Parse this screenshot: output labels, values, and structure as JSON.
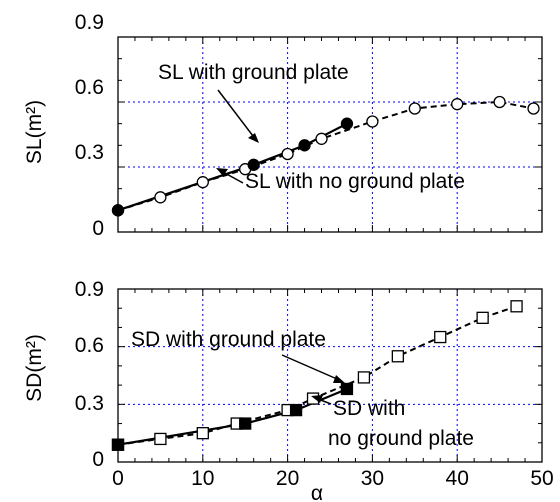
{
  "chart_data": [
    {
      "type": "line",
      "panel": "top",
      "ylabel": "SL(m²)",
      "xlabel": "",
      "xlim": [
        0,
        50
      ],
      "ylim": [
        0,
        0.9
      ],
      "yticks": [
        0,
        0.3,
        0.6,
        0.9
      ],
      "ytick_labels": [
        "0",
        "0.3",
        "0.6",
        "0.9"
      ],
      "grid": true,
      "series": [
        {
          "name": "SL with no ground plate",
          "marker": "open-circle",
          "line": "dashed",
          "x": [
            0,
            5,
            10,
            15,
            20,
            24,
            30,
            35,
            40,
            45,
            49
          ],
          "y": [
            0.1,
            0.16,
            0.23,
            0.29,
            0.36,
            0.43,
            0.51,
            0.57,
            0.59,
            0.6,
            0.57
          ]
        },
        {
          "name": "SL with ground plate",
          "marker": "filled-circle",
          "line": "solid",
          "x": [
            0,
            16,
            22,
            27
          ],
          "y": [
            0.1,
            0.31,
            0.4,
            0.5
          ]
        }
      ],
      "annotations": [
        {
          "text": "SL with ground plate",
          "x": 16,
          "y": 0.31
        },
        {
          "text": "SL with no ground plate",
          "x": 11,
          "y": 0.23
        }
      ]
    },
    {
      "type": "line",
      "panel": "bottom",
      "ylabel": "SD(m²)",
      "xlabel": "α",
      "xlim": [
        0,
        50
      ],
      "ylim": [
        0,
        0.9
      ],
      "xticks": [
        0,
        10,
        20,
        30,
        40,
        50
      ],
      "xtick_labels": [
        "0",
        "10",
        "20",
        "30",
        "40",
        "50"
      ],
      "yticks": [
        0,
        0.3,
        0.6,
        0.9
      ],
      "ytick_labels": [
        "0",
        "0.3",
        "0.6",
        "0.9"
      ],
      "grid": true,
      "series": [
        {
          "name": "SD with no ground plate",
          "marker": "open-square",
          "line": "dashed",
          "x": [
            0,
            5,
            10,
            14,
            20,
            23,
            29,
            33,
            38,
            43,
            47
          ],
          "y": [
            0.09,
            0.12,
            0.15,
            0.2,
            0.27,
            0.33,
            0.44,
            0.55,
            0.65,
            0.75,
            0.81
          ]
        },
        {
          "name": "SD with ground plate",
          "marker": "filled-square",
          "line": "solid",
          "x": [
            0,
            15,
            21,
            27
          ],
          "y": [
            0.09,
            0.2,
            0.27,
            0.38
          ]
        }
      ],
      "annotations": [
        {
          "text": "SD with ground plate",
          "x": 27,
          "y": 0.38
        },
        {
          "text": "SD with",
          "x": 24,
          "y": 0.3
        },
        {
          "text": "no ground plate",
          "x": 24,
          "y": 0.3
        }
      ]
    }
  ]
}
